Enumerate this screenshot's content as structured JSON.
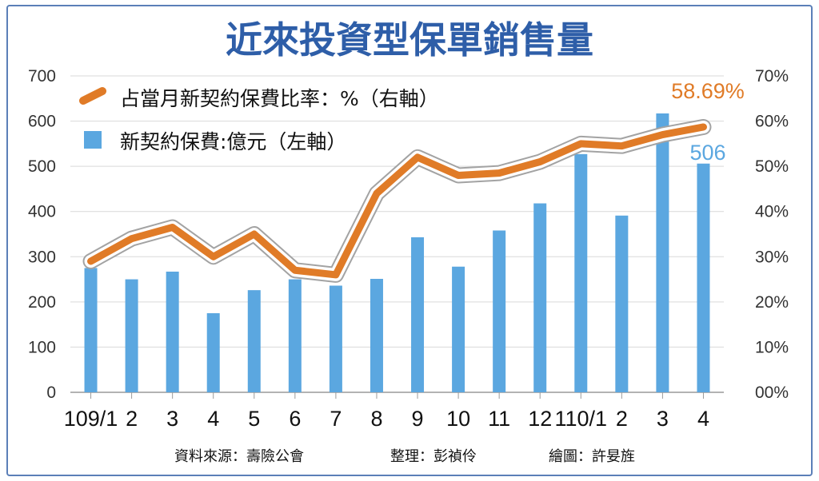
{
  "chart_data": {
    "type": "bar+line",
    "title": "近來投資型保單銷售量",
    "categories": [
      "109/1",
      "2",
      "3",
      "4",
      "5",
      "6",
      "7",
      "8",
      "9",
      "10",
      "11",
      "12",
      "110/1",
      "2",
      "3",
      "4"
    ],
    "series": [
      {
        "name": "新契約保費:億元（左軸）",
        "type": "bar",
        "axis": "left",
        "color": "#5ba7e0",
        "values": [
          275,
          250,
          267,
          175,
          226,
          250,
          236,
          251,
          343,
          278,
          358,
          418,
          527,
          391,
          617,
          506
        ]
      },
      {
        "name": "占當月新契約保費比率：%（右軸）",
        "type": "line",
        "axis": "right",
        "color": "#e07b27",
        "values": [
          29,
          34,
          36.5,
          30,
          35,
          27,
          26,
          44,
          52,
          48,
          48.5,
          51,
          55,
          54.5,
          57,
          58.69
        ]
      }
    ],
    "y_left": {
      "ylim": [
        0,
        700
      ],
      "ticks": [
        "0",
        "100",
        "200",
        "300",
        "400",
        "500",
        "600",
        "700"
      ]
    },
    "y_right": {
      "ylim": [
        0,
        70
      ],
      "ticks": [
        "00%",
        "10%",
        "20%",
        "30%",
        "40%",
        "50%",
        "60%",
        "70%"
      ]
    },
    "annotations": {
      "line_last": "58.69%",
      "bar_last": "506"
    },
    "grid": true,
    "legend": "top-left"
  },
  "source_line": {
    "source": "資料來源：壽險公會",
    "editor": "整理：彭禎伶",
    "artist": "繪圖：許妟旌"
  }
}
